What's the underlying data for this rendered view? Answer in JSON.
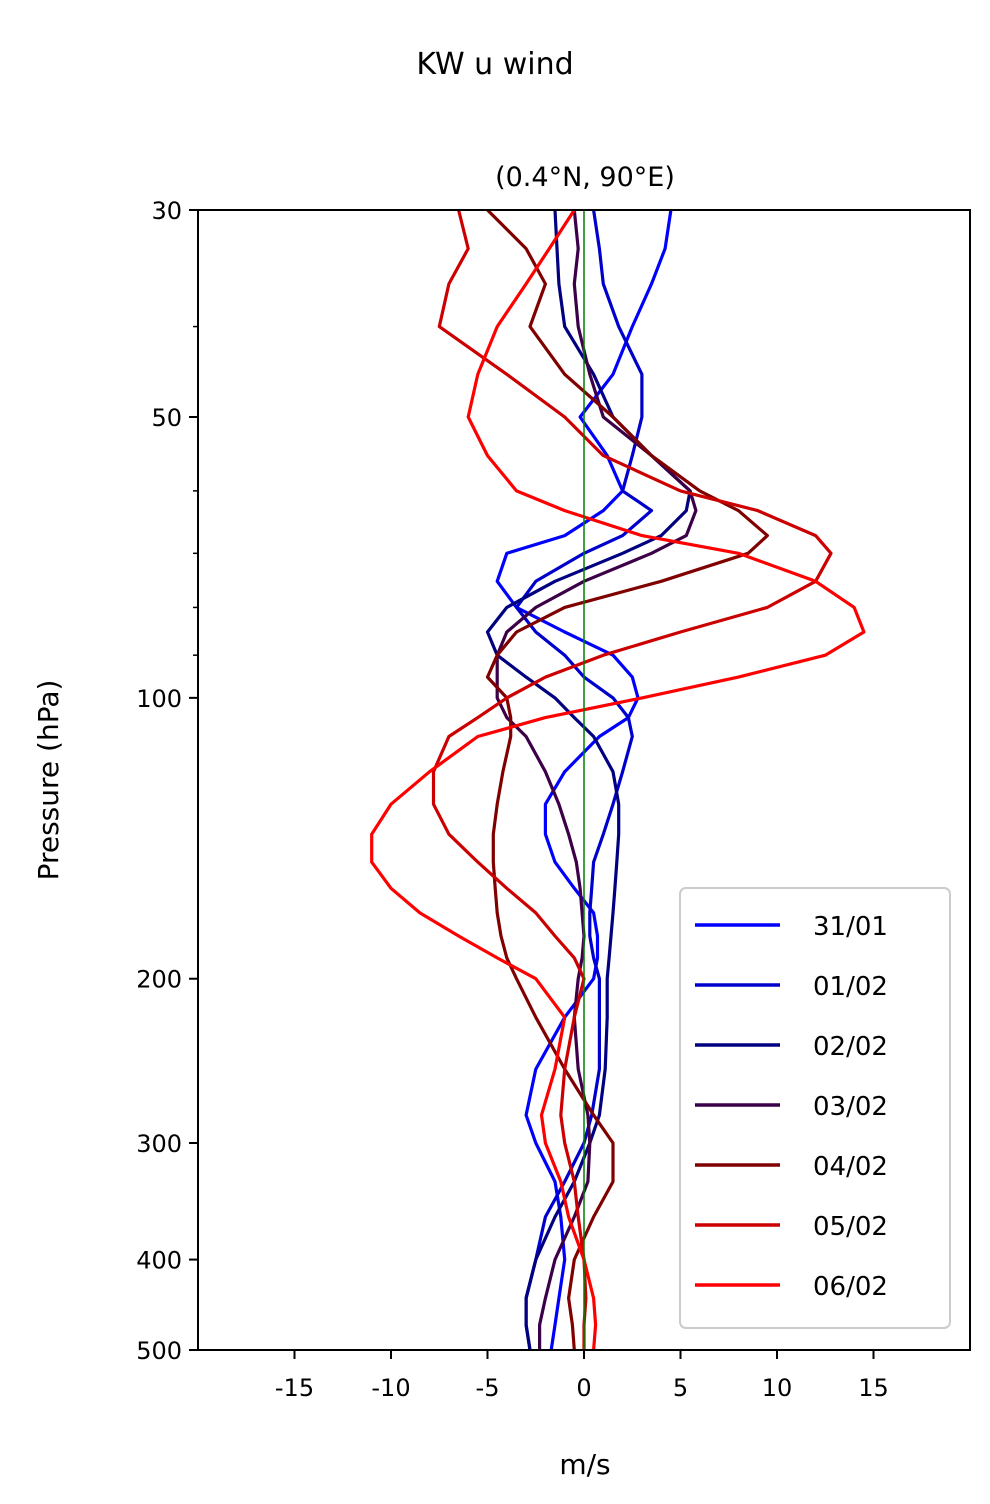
{
  "chart_data": {
    "type": "line",
    "title": "KW u wind",
    "subtitle": "(0.4°N, 90°E)",
    "xlabel": "m/s",
    "ylabel": "Pressure (hPa)",
    "xlim": [
      -20,
      20
    ],
    "ylim": [
      500,
      30
    ],
    "yscale": "log",
    "xticks": [
      -15,
      -10,
      -5,
      0,
      5,
      10,
      15
    ],
    "xtick_labels": [
      "-15",
      "-10",
      "-5",
      "0",
      "5",
      "10",
      "15"
    ],
    "yticks": [
      30,
      50,
      100,
      200,
      300,
      400,
      500
    ],
    "ytick_labels": [
      "30",
      "50",
      "100",
      "200",
      "300",
      "400",
      "500"
    ],
    "yminor_ticks": [
      40,
      60,
      70,
      80,
      90
    ],
    "zero_line_color": "#008000",
    "legend": "lower right",
    "grid": false,
    "series": [
      {
        "name": "31/01",
        "color": "#0000ff",
        "p": [
          30,
          33,
          36,
          40,
          45,
          50,
          55,
          60,
          63,
          67,
          70,
          75,
          80,
          85,
          90,
          95,
          100,
          105,
          110,
          120,
          130,
          140,
          150,
          160,
          170,
          180,
          190,
          200,
          220,
          250,
          280,
          300,
          330,
          360,
          400,
          440,
          470,
          500
        ],
        "u": [
          4.5,
          4.2,
          3.5,
          2.5,
          1.5,
          -0.2,
          1.2,
          2,
          1,
          -1,
          -4,
          -4.5,
          -3.5,
          -1,
          1.5,
          2.5,
          2.8,
          2.3,
          0.8,
          -1,
          -2,
          -2,
          -1.5,
          -0.5,
          0.5,
          0.7,
          0.7,
          0.5,
          -1,
          -2.5,
          -3,
          -2.5,
          -1.5,
          -1.2,
          -1,
          -1.3,
          -1.5,
          -1.7
        ]
      },
      {
        "name": "01/02",
        "color": "#0000cc",
        "p": [
          30,
          33,
          36,
          40,
          45,
          50,
          55,
          60,
          63,
          67,
          70,
          75,
          80,
          85,
          90,
          95,
          100,
          105,
          110,
          120,
          130,
          140,
          150,
          160,
          170,
          180,
          190,
          200,
          220,
          250,
          280,
          300,
          330,
          360,
          400,
          440,
          470,
          500
        ],
        "u": [
          0.5,
          0.8,
          1,
          1.8,
          3,
          3,
          2.5,
          2,
          3.5,
          2,
          0,
          -2.5,
          -3.5,
          -2.5,
          -1,
          0,
          1.5,
          2.3,
          2.5,
          2,
          1.5,
          1,
          0.5,
          0.4,
          0.3,
          0.3,
          0.5,
          0.8,
          0.8,
          0.8,
          0.4,
          0,
          -1,
          -2,
          -2.5,
          -3,
          -3,
          -2.8
        ]
      },
      {
        "name": "02/02",
        "color": "#000080",
        "p": [
          30,
          33,
          36,
          40,
          45,
          50,
          55,
          60,
          63,
          67,
          70,
          75,
          80,
          85,
          90,
          95,
          100,
          105,
          110,
          120,
          130,
          140,
          150,
          160,
          170,
          180,
          190,
          200,
          220,
          250,
          280,
          300,
          330,
          360,
          400,
          440,
          470,
          500
        ],
        "u": [
          -1.5,
          -1.4,
          -1.3,
          -1,
          0.5,
          1.5,
          3.5,
          5.5,
          5.3,
          4,
          2,
          -1.5,
          -4,
          -5,
          -4.5,
          -3,
          -1.5,
          -0.5,
          0.5,
          1.5,
          1.8,
          1.8,
          1.7,
          1.6,
          1.5,
          1.4,
          1.3,
          1.2,
          1.2,
          1.1,
          0.8,
          0.3,
          -0.5,
          -1.5,
          -2.5,
          -3,
          -3,
          -2.8
        ]
      },
      {
        "name": "03/02",
        "color": "#3b0048",
        "p": [
          30,
          33,
          36,
          40,
          45,
          50,
          55,
          60,
          63,
          67,
          70,
          75,
          80,
          85,
          90,
          95,
          100,
          105,
          110,
          120,
          130,
          140,
          150,
          160,
          170,
          180,
          190,
          200,
          220,
          250,
          280,
          300,
          330,
          360,
          400,
          440,
          470,
          500
        ],
        "u": [
          -0.5,
          -0.3,
          -0.5,
          -0.3,
          0.3,
          1,
          3.5,
          5.5,
          5.8,
          5.3,
          3.5,
          0,
          -2.5,
          -4,
          -4.5,
          -4.5,
          -4.5,
          -4,
          -3,
          -2,
          -1.3,
          -0.8,
          -0.4,
          -0.2,
          -0.1,
          0,
          -0.1,
          -0.3,
          -0.5,
          -0.3,
          0.2,
          0.3,
          0.2,
          -0.5,
          -1.5,
          -2,
          -2.3,
          -2.3
        ]
      },
      {
        "name": "04/02",
        "color": "#800000",
        "p": [
          30,
          33,
          36,
          40,
          45,
          50,
          55,
          60,
          63,
          67,
          70,
          75,
          80,
          85,
          90,
          95,
          100,
          105,
          110,
          120,
          130,
          140,
          150,
          160,
          170,
          180,
          190,
          200,
          220,
          250,
          280,
          300,
          330,
          360,
          400,
          440,
          470,
          500
        ],
        "u": [
          -5,
          -3,
          -2,
          -2.8,
          -1,
          1.5,
          3.5,
          6,
          8,
          9.5,
          8.5,
          4,
          -1,
          -3.5,
          -4.5,
          -5,
          -4,
          -3.8,
          -3.8,
          -4.2,
          -4.5,
          -4.7,
          -4.7,
          -4.6,
          -4.5,
          -4.3,
          -4,
          -3.5,
          -2.5,
          -1,
          0.5,
          1.5,
          1.5,
          0.5,
          -0.5,
          -0.8,
          -0.6,
          -0.5
        ]
      },
      {
        "name": "05/02",
        "color": "#cc0000",
        "p": [
          30,
          33,
          36,
          40,
          45,
          50,
          55,
          60,
          63,
          67,
          70,
          75,
          80,
          85,
          90,
          95,
          100,
          105,
          110,
          120,
          130,
          140,
          150,
          160,
          170,
          180,
          190,
          200,
          220,
          250,
          280,
          300,
          330,
          360,
          400,
          440,
          470,
          500
        ],
        "u": [
          -6.5,
          -6,
          -7,
          -7.5,
          -4,
          -1,
          1,
          5,
          9,
          12,
          12.8,
          12,
          9.5,
          5,
          1,
          -2,
          -4,
          -5.5,
          -7,
          -7.8,
          -7.8,
          -7,
          -5.5,
          -4,
          -2.5,
          -1.5,
          -0.5,
          0,
          -0.5,
          -1,
          -1.2,
          -1,
          -0.5,
          -0.3,
          0,
          0.1,
          0,
          0
        ]
      },
      {
        "name": "06/02",
        "color": "#ff0000",
        "p": [
          30,
          33,
          36,
          40,
          45,
          50,
          55,
          60,
          63,
          67,
          70,
          75,
          80,
          85,
          90,
          95,
          100,
          105,
          110,
          120,
          130,
          140,
          150,
          160,
          170,
          180,
          190,
          200,
          220,
          250,
          280,
          300,
          330,
          360,
          400,
          440,
          470,
          500
        ],
        "u": [
          -0.5,
          -1.8,
          -3,
          -4.5,
          -5.5,
          -6,
          -5,
          -3.5,
          -1,
          3,
          8,
          12,
          14,
          14.5,
          12.5,
          8,
          3,
          -2,
          -5.5,
          -8,
          -10,
          -11,
          -11,
          -10,
          -8.5,
          -6.5,
          -4.5,
          -2.5,
          -1,
          -1.5,
          -2.2,
          -2,
          -1.2,
          -0.8,
          0,
          0.5,
          0.6,
          0.5
        ]
      }
    ]
  }
}
